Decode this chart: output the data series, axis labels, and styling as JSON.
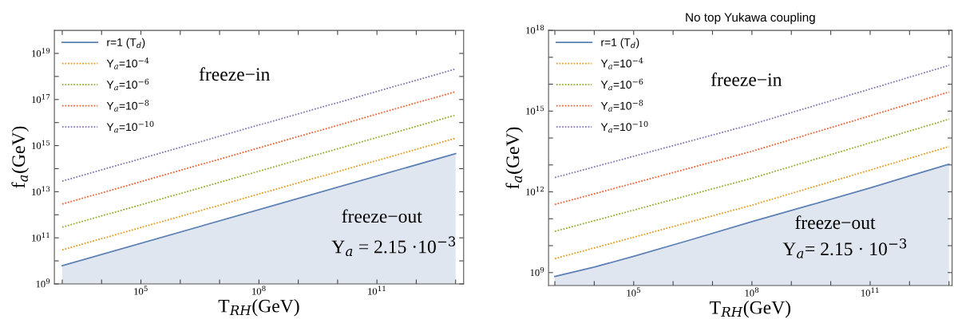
{
  "chart_data": [
    {
      "type": "line",
      "xlabel": "T$_{RH}$(GeV)",
      "ylabel": "f$_{a}$(GeV)",
      "log": "xy",
      "legend": "top left",
      "grid": false,
      "xlim": [
        631,
        16000000000000.0
      ],
      "ylim": [
        1000000000.0,
        1e+20
      ],
      "xticks": [
        {
          "value": 1000.0,
          "label": null
        },
        {
          "value": 10000.0,
          "label": null
        },
        {
          "value": 100000.0,
          "label": "10$^{5}$"
        },
        {
          "value": 1000000.0,
          "label": null
        },
        {
          "value": 10000000.0,
          "label": null
        },
        {
          "value": 100000000.0,
          "label": "10$^{8}$"
        },
        {
          "value": 1000000000.0,
          "label": null
        },
        {
          "value": 10000000000.0,
          "label": null
        },
        {
          "value": 100000000000.0,
          "label": "10$^{11}$"
        },
        {
          "value": 1000000000000.0,
          "label": null
        },
        {
          "value": 10000000000000.0,
          "label": null
        }
      ],
      "yticks": [
        {
          "value": 1000000000.0,
          "label": "10$^{9}$"
        },
        {
          "value": 10000000000.0,
          "label": null
        },
        {
          "value": 100000000000.0,
          "label": "10$^{11}$"
        },
        {
          "value": 1000000000000.0,
          "label": null
        },
        {
          "value": 10000000000000.0,
          "label": "10$^{13}$"
        },
        {
          "value": 100000000000000.0,
          "label": null
        },
        {
          "value": 1000000000000000.0,
          "label": "10$^{15}$"
        },
        {
          "value": 1e+16,
          "label": null
        },
        {
          "value": 1e+17,
          "label": "10$^{17}$"
        },
        {
          "value": 1e+18,
          "label": null
        },
        {
          "value": 1e+19,
          "label": "10$^{19}$"
        }
      ],
      "annotations": [
        "freeze−in",
        "freeze−out",
        "Y$_{a}$ = 2.15 ·10$^{−3}$"
      ],
      "series": [
        {
          "name": "r=1 (T$_{d}$)",
          "type": "area",
          "color": "#5e81b5",
          "line_style": "solid",
          "x": [
            1000.0,
            10000000000000.0
          ],
          "values": [
            6200000000.0,
            450000000000000.0
          ]
        },
        {
          "name": "Y$_{a}$=10$^{−4}$",
          "color": "#e19c24",
          "line_style": "dotted",
          "x": [
            1000.0,
            10000000000000.0
          ],
          "values": [
            30000000000.0,
            2100000000000000.0
          ]
        },
        {
          "name": "Y$_{a}$=10$^{−6}$",
          "color": "#8fb032",
          "line_style": "dotted",
          "x": [
            1000.0,
            10000000000000.0
          ],
          "values": [
            290000000000.0,
            2.1e+16
          ]
        },
        {
          "name": "Y$_{a}$=10$^{−8}$",
          "color": "#eb6235",
          "line_style": "dotted",
          "x": [
            1000.0,
            10000000000000.0
          ],
          "values": [
            2900000000000.0,
            2.2e+17
          ]
        },
        {
          "name": "Y$_{a}$=10$^{−10}$",
          "color": "#8778b3",
          "line_style": "dotted",
          "x": [
            1000.0,
            10000000000000.0
          ],
          "values": [
            29000000000000.0,
            2.1e+18
          ]
        }
      ]
    },
    {
      "type": "line",
      "title": "No top Yukawa coupling",
      "xlabel": "T$_{RH}$(GeV)",
      "ylabel": "f$_{a}$(GeV)",
      "log": "xy",
      "legend": "top left",
      "grid": false,
      "xlim": [
        692,
        12000000000000.0
      ],
      "ylim": [
        330000000.0,
        1e+18
      ],
      "xticks": [
        {
          "value": 1000.0,
          "label": null
        },
        {
          "value": 10000.0,
          "label": null
        },
        {
          "value": 100000.0,
          "label": "10$^{5}$"
        },
        {
          "value": 1000000.0,
          "label": null
        },
        {
          "value": 10000000.0,
          "label": null
        },
        {
          "value": 100000000.0,
          "label": "10$^{8}$"
        },
        {
          "value": 1000000000.0,
          "label": null
        },
        {
          "value": 10000000000.0,
          "label": null
        },
        {
          "value": 100000000000.0,
          "label": "10$^{11}$"
        },
        {
          "value": 1000000000000.0,
          "label": null
        },
        {
          "value": 10000000000000.0,
          "label": null
        }
      ],
      "yticks": [
        {
          "value": 1000000000.0,
          "label": "10$^{9}$"
        },
        {
          "value": 10000000000.0,
          "label": null
        },
        {
          "value": 100000000000.0,
          "label": null
        },
        {
          "value": 1000000000000.0,
          "label": "10$^{12}$"
        },
        {
          "value": 10000000000000.0,
          "label": null
        },
        {
          "value": 100000000000000.0,
          "label": null
        },
        {
          "value": 1000000000000000.0,
          "label": "10$^{15}$"
        },
        {
          "value": 1e+16,
          "label": null
        },
        {
          "value": 1e+17,
          "label": null
        },
        {
          "value": 1e+18,
          "label": "10$^{18}$"
        }
      ],
      "annotations": [
        "freeze−in",
        "freeze−out",
        "Y$_{a}$= 2.15 · 10$^{−3}$"
      ],
      "series": [
        {
          "name": "r=1 (T$_{d}$)",
          "type": "area",
          "color": "#5e81b5",
          "line_style": "solid",
          "x": [
            1000.0,
            10000.0,
            100000.0,
            3000000.0,
            100000000.0,
            3000000000.0,
            100000000000.0,
            1000000000000.0,
            10000000000000.0
          ],
          "values": [
            720000000.0,
            1600000000.0,
            4000000000.0,
            17000000000.0,
            78000000000.0,
            320000000000.0,
            1400000000000.0,
            3900000000000.0,
            10700000000000.0
          ]
        },
        {
          "name": "Y$_{a}$=10$^{−4}$",
          "color": "#e19c24",
          "line_style": "dotted",
          "x": [
            1000.0,
            100000000.0,
            10000000000000.0
          ],
          "values": [
            3300000000.0,
            320000000000.0,
            48000000000000.0
          ]
        },
        {
          "name": "Y$_{a}$=10$^{−6}$",
          "color": "#8fb032",
          "line_style": "dotted",
          "x": [
            1000.0,
            100000000.0,
            10000000000000.0
          ],
          "values": [
            34000000000.0,
            3200000000000.0,
            500000000000000.0
          ]
        },
        {
          "name": "Y$_{a}$=10$^{−8}$",
          "color": "#eb6235",
          "line_style": "dotted",
          "x": [
            1000.0,
            100000000.0,
            10000000000000.0
          ],
          "values": [
            340000000000.0,
            32000000000000.0,
            5100000000000000.0
          ]
        },
        {
          "name": "Y$_{a}$=10$^{−10}$",
          "color": "#8778b3",
          "line_style": "dotted",
          "x": [
            1000.0,
            100000000.0,
            10000000000000.0
          ],
          "values": [
            3400000000000.0,
            320000000000000.0,
            5e+16
          ]
        }
      ]
    }
  ]
}
